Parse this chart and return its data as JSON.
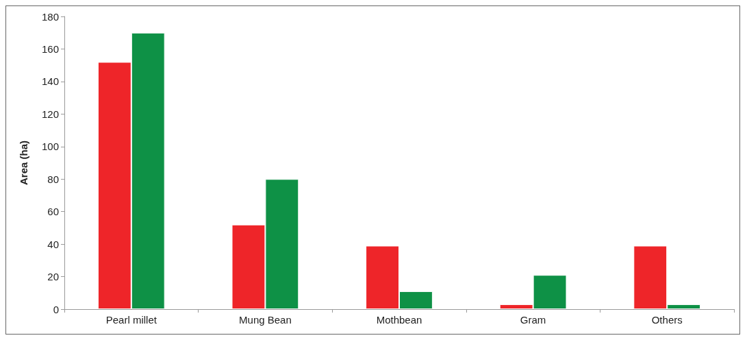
{
  "chart_data": {
    "type": "bar",
    "ylabel": "Area (ha)",
    "categories": [
      "Pearl millet",
      "Mung Bean",
      "Mothbean",
      "Gram",
      "Others"
    ],
    "series": [
      {
        "color": "#ee2529",
        "values": [
          152,
          52,
          39,
          3,
          39
        ]
      },
      {
        "color": "#0e9146",
        "values": [
          170,
          80,
          11,
          21,
          3
        ]
      }
    ],
    "ylim": [
      0,
      180
    ],
    "yticks": [
      0,
      20,
      40,
      60,
      80,
      100,
      120,
      140,
      160,
      180
    ],
    "grid": false
  }
}
